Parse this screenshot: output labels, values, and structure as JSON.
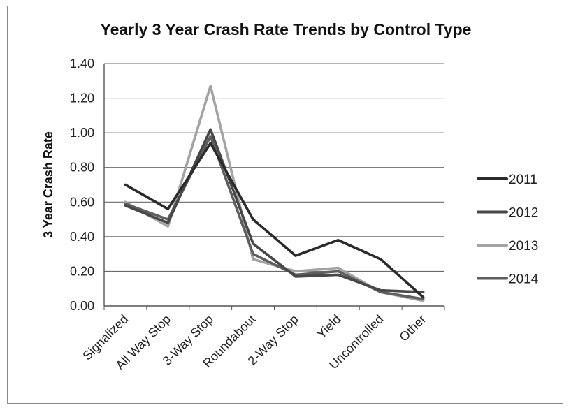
{
  "chart_data": {
    "type": "line",
    "title": "Yearly 3 Year Crash Rate Trends by Control Type",
    "xlabel": "",
    "ylabel": "3 Year Crash Rate",
    "categories": [
      "Signalized",
      "All Way Stop",
      "3-Way Stop",
      "Roundabout",
      "2-Way Stop",
      "Yield",
      "Uncontrolled",
      "Other"
    ],
    "y_ticks": [
      "0.00",
      "0.20",
      "0.40",
      "0.60",
      "0.80",
      "1.00",
      "1.20",
      "1.40"
    ],
    "ylim": [
      0,
      1.4
    ],
    "grid": "horizontal",
    "legend_position": "right",
    "series": [
      {
        "name": "2011",
        "color": "#2b2b2b",
        "values": [
          0.7,
          0.56,
          0.94,
          0.5,
          0.29,
          0.38,
          0.27,
          0.05
        ]
      },
      {
        "name": "2012",
        "color": "#474747",
        "values": [
          0.58,
          0.48,
          1.02,
          0.36,
          0.17,
          0.18,
          0.09,
          0.08
        ]
      },
      {
        "name": "2013",
        "color": "#a3a3a3",
        "values": [
          0.6,
          0.46,
          1.27,
          0.27,
          0.2,
          0.22,
          0.08,
          0.03
        ]
      },
      {
        "name": "2014",
        "color": "#5e5e5e",
        "values": [
          0.59,
          0.5,
          0.98,
          0.3,
          0.18,
          0.2,
          0.08,
          0.04
        ]
      }
    ]
  }
}
